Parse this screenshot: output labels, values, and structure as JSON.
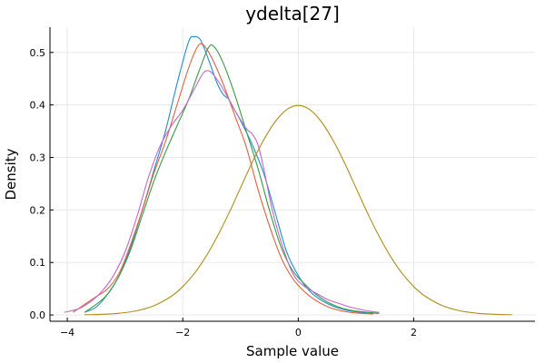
{
  "chart_data": {
    "type": "line",
    "title": "ydelta[27]",
    "xlabel": "Sample value",
    "ylabel": "Density",
    "xlim": [
      -4.3,
      4.1
    ],
    "ylim": [
      -0.012,
      0.548
    ],
    "xticks": [
      -4,
      -2,
      0,
      2
    ],
    "yticks": [
      0.0,
      0.1,
      0.2,
      0.3,
      0.4,
      0.5
    ],
    "xtick_labels": [
      "−4",
      "−2",
      "0",
      "2"
    ],
    "ytick_labels": [
      "0.0",
      "0.1",
      "0.2",
      "0.3",
      "0.4",
      "0.5"
    ],
    "grid": true,
    "legend": "none",
    "series": [
      {
        "color": "#1f8fd0",
        "x": [
          -3.7,
          -3.5,
          -3.3,
          -3.1,
          -2.9,
          -2.7,
          -2.5,
          -2.3,
          -2.1,
          -1.9,
          -1.8,
          -1.7,
          -1.6,
          -1.5,
          -1.4,
          -1.3,
          -1.2,
          -1.1,
          -1.0,
          -0.8,
          -0.6,
          -0.4,
          -0.2,
          0.0,
          0.2,
          0.4,
          0.6,
          0.8,
          1.0,
          1.2,
          1.4
        ],
        "y": [
          0.005,
          0.015,
          0.04,
          0.075,
          0.13,
          0.2,
          0.275,
          0.35,
          0.44,
          0.52,
          0.53,
          0.525,
          0.5,
          0.47,
          0.44,
          0.42,
          0.41,
          0.39,
          0.37,
          0.325,
          0.27,
          0.195,
          0.12,
          0.075,
          0.045,
          0.028,
          0.017,
          0.01,
          0.006,
          0.004,
          0.003
        ]
      },
      {
        "color": "#e0603f",
        "x": [
          -3.9,
          -3.7,
          -3.5,
          -3.3,
          -3.1,
          -2.9,
          -2.7,
          -2.5,
          -2.3,
          -2.1,
          -1.9,
          -1.75,
          -1.65,
          -1.5,
          -1.3,
          -1.1,
          -0.9,
          -0.7,
          -0.5,
          -0.3,
          -0.1,
          0.1,
          0.3,
          0.5,
          0.7,
          0.9,
          1.1,
          1.3
        ],
        "y": [
          0.005,
          0.02,
          0.035,
          0.05,
          0.08,
          0.135,
          0.2,
          0.27,
          0.33,
          0.4,
          0.47,
          0.51,
          0.515,
          0.49,
          0.44,
          0.38,
          0.32,
          0.24,
          0.17,
          0.11,
          0.07,
          0.045,
          0.028,
          0.016,
          0.009,
          0.005,
          0.003,
          0.002
        ]
      },
      {
        "color": "#3a9a48",
        "x": [
          -3.7,
          -3.5,
          -3.3,
          -3.1,
          -2.9,
          -2.7,
          -2.5,
          -2.3,
          -2.1,
          -1.9,
          -1.7,
          -1.55,
          -1.45,
          -1.3,
          -1.1,
          -0.9,
          -0.7,
          -0.5,
          -0.3,
          -0.1,
          0.1,
          0.3,
          0.5,
          0.7,
          0.9,
          1.1,
          1.3,
          1.4
        ],
        "y": [
          0.005,
          0.02,
          0.04,
          0.075,
          0.125,
          0.19,
          0.255,
          0.31,
          0.36,
          0.41,
          0.47,
          0.51,
          0.51,
          0.48,
          0.42,
          0.35,
          0.28,
          0.2,
          0.13,
          0.085,
          0.06,
          0.04,
          0.025,
          0.015,
          0.009,
          0.006,
          0.004,
          0.003
        ]
      },
      {
        "color": "#c268c8",
        "x": [
          -4.05,
          -3.8,
          -3.6,
          -3.4,
          -3.2,
          -3.0,
          -2.8,
          -2.6,
          -2.4,
          -2.2,
          -2.0,
          -1.8,
          -1.65,
          -1.55,
          -1.45,
          -1.3,
          -1.1,
          -0.9,
          -0.8,
          -0.7,
          -0.6,
          -0.45,
          -0.3,
          -0.1,
          0.1,
          0.3,
          0.5,
          0.7,
          0.9,
          1.1,
          1.3,
          1.4
        ],
        "y": [
          0.005,
          0.012,
          0.025,
          0.045,
          0.075,
          0.12,
          0.185,
          0.26,
          0.32,
          0.36,
          0.39,
          0.43,
          0.46,
          0.465,
          0.455,
          0.43,
          0.39,
          0.355,
          0.345,
          0.325,
          0.28,
          0.2,
          0.14,
          0.08,
          0.055,
          0.042,
          0.03,
          0.022,
          0.015,
          0.01,
          0.006,
          0.005
        ]
      },
      {
        "color": "#b08d17",
        "x": [
          -3.7,
          -3.4,
          -3.1,
          -2.8,
          -2.5,
          -2.2,
          -2.0,
          -1.8,
          -1.6,
          -1.4,
          -1.2,
          -1.0,
          -0.8,
          -0.6,
          -0.4,
          -0.2,
          0.0,
          0.2,
          0.4,
          0.6,
          0.8,
          1.0,
          1.2,
          1.4,
          1.6,
          1.8,
          2.0,
          2.2,
          2.5,
          2.8,
          3.1,
          3.4,
          3.7
        ],
        "y": [
          0.0004,
          0.0012,
          0.0033,
          0.0079,
          0.0175,
          0.0355,
          0.054,
          0.079,
          0.111,
          0.15,
          0.194,
          0.242,
          0.29,
          0.333,
          0.368,
          0.391,
          0.399,
          0.391,
          0.368,
          0.333,
          0.29,
          0.242,
          0.194,
          0.15,
          0.111,
          0.079,
          0.054,
          0.0355,
          0.0175,
          0.0079,
          0.0033,
          0.0012,
          0.0004
        ]
      }
    ]
  }
}
